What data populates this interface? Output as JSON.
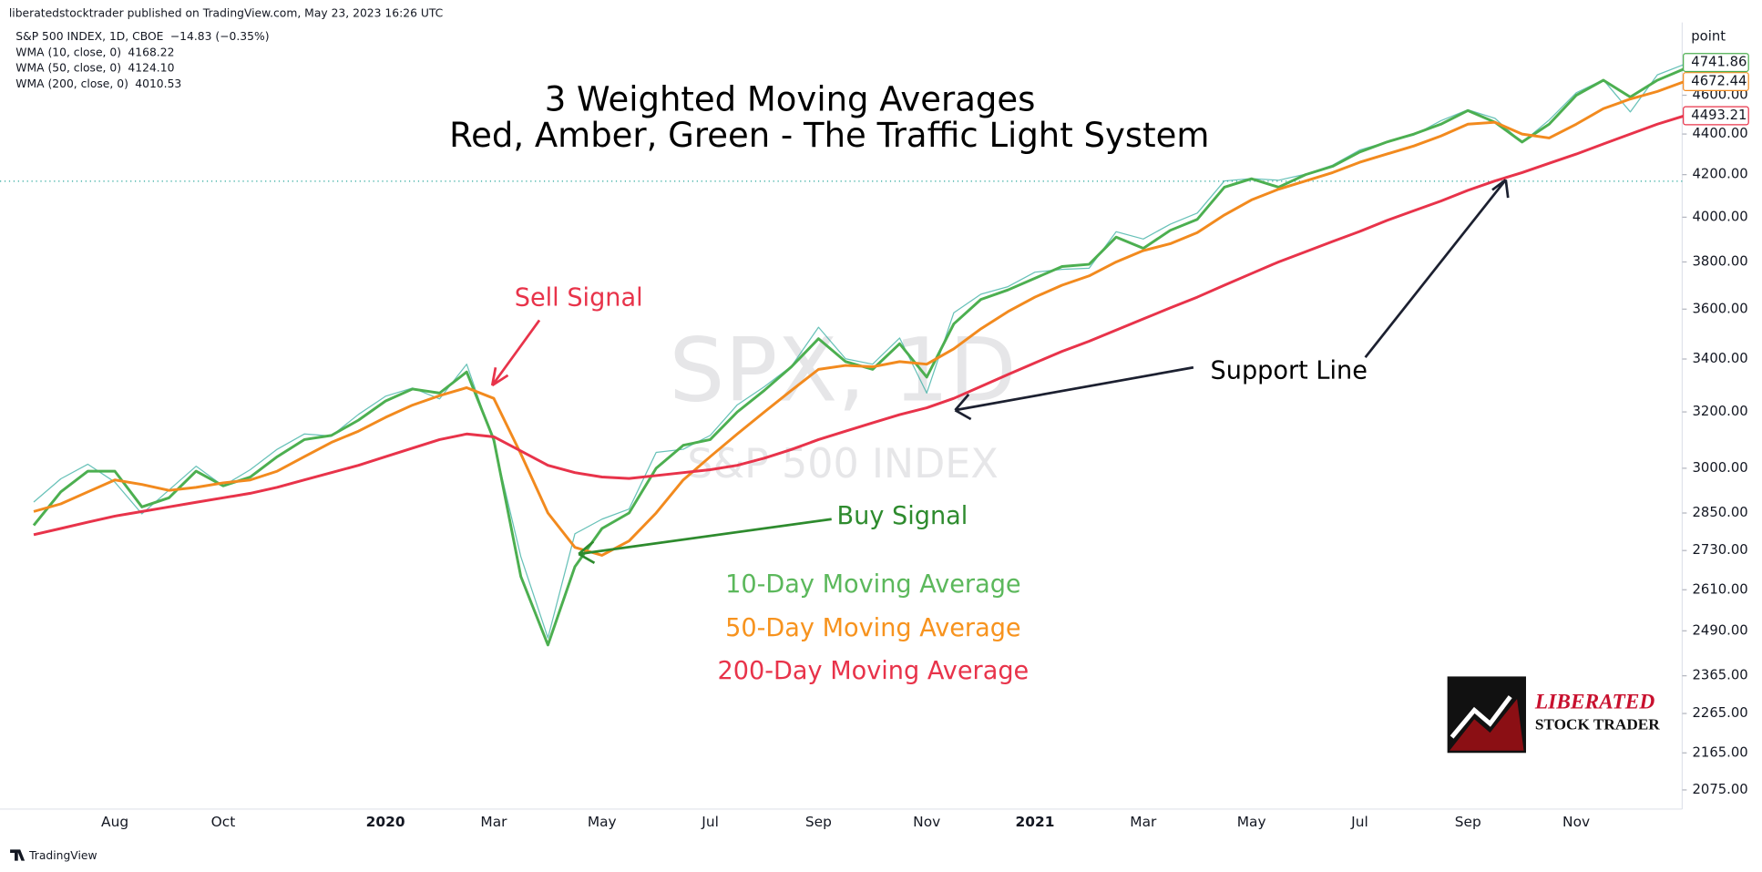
{
  "header": "liberatedstocktrader published on TradingView.com, May 23, 2023 16:26 UTC",
  "footer": "TradingView",
  "chart_data": {
    "type": "line",
    "title": [
      "3 Weighted Moving Averages",
      "Red, Amber, Green - The Traffic Light System"
    ],
    "watermark": [
      "SPX, 1D",
      "S&P 500 INDEX"
    ],
    "y_unit": "point",
    "log_scale": true,
    "grid": false,
    "categories": [
      null,
      null,
      null,
      "Aug",
      null,
      null,
      null,
      "Oct",
      null,
      null,
      null,
      null,
      null,
      "2020",
      null,
      null,
      null,
      "Mar",
      null,
      null,
      null,
      "May",
      null,
      null,
      null,
      "Jul",
      null,
      null,
      null,
      "Sep",
      null,
      null,
      null,
      "Nov",
      null,
      null,
      null,
      "2021",
      null,
      null,
      null,
      "Mar",
      null,
      null,
      null,
      "May",
      null,
      null,
      null,
      "Jul",
      null,
      null,
      null,
      "Sep",
      null,
      null,
      null,
      "Nov",
      null,
      null,
      null,
      null
    ],
    "ylim": [
      2030,
      5000
    ],
    "yticks": [
      {
        "value": 2075,
        "label": "2075.00"
      },
      {
        "value": 2165,
        "label": "2165.00"
      },
      {
        "value": 2265,
        "label": "2265.00"
      },
      {
        "value": 2365,
        "label": "2365.00"
      },
      {
        "value": 2490,
        "label": "2490.00"
      },
      {
        "value": 2610,
        "label": "2610.00"
      },
      {
        "value": 2730,
        "label": "2730.00"
      },
      {
        "value": 2850,
        "label": "2850.00"
      },
      {
        "value": 3000,
        "label": "3000.00"
      },
      {
        "value": 3200,
        "label": "3200.00"
      },
      {
        "value": 3400,
        "label": "3400.00"
      },
      {
        "value": 3600,
        "label": "3600.00"
      },
      {
        "value": 3800,
        "label": "3800.00"
      },
      {
        "value": 4000,
        "label": "4000.00"
      },
      {
        "value": 4200,
        "label": "4200.00"
      },
      {
        "value": 4400,
        "label": "4400.00"
      },
      {
        "value": 4600,
        "label": "4600.00"
      }
    ],
    "series": [
      {
        "name": "S&P 500 INDEX, 1D, CBOE",
        "color": "#26a69a",
        "legend_value": "−14.83 (−0.35%)",
        "values": [
          2886,
          2964,
          3014,
          2953,
          2847,
          2926,
          3007,
          2940,
          2995,
          3066,
          3120,
          3113,
          3191,
          3258,
          3289,
          3248,
          3380,
          3090,
          2711,
          2470,
          2783,
          2830,
          2863,
          3055,
          3066,
          3115,
          3226,
          3294,
          3372,
          3526,
          3401,
          3380,
          3483,
          3270,
          3585,
          3662,
          3694,
          3756,
          3768,
          3773,
          3934,
          3901,
          3968,
          4019,
          4170,
          4181,
          4173,
          4202,
          4246,
          4320,
          4360,
          4395,
          4468,
          4524,
          4480,
          4357,
          4471,
          4613,
          4682,
          4513,
          4709,
          4766
        ]
      },
      {
        "name": "WMA (10, close, 0)",
        "color": "#4caf50",
        "axis_label": true,
        "legend_value": {
          "value": 4168.22,
          "label": "4168.22"
        },
        "values": [
          2810,
          2920,
          2990,
          2990,
          2870,
          2900,
          2990,
          2940,
          2970,
          3040,
          3100,
          3115,
          3170,
          3240,
          3285,
          3270,
          3350,
          3100,
          2650,
          2450,
          2680,
          2800,
          2850,
          3000,
          3080,
          3100,
          3200,
          3280,
          3370,
          3480,
          3390,
          3360,
          3460,
          3330,
          3540,
          3640,
          3680,
          3730,
          3780,
          3790,
          3910,
          3860,
          3940,
          3990,
          4140,
          4180,
          4140,
          4200,
          4240,
          4310,
          4360,
          4400,
          4450,
          4520,
          4460,
          4360,
          4450,
          4600,
          4680,
          4590,
          4680,
          4741.86
        ]
      },
      {
        "name": "WMA (50, close, 0)",
        "color": "#f28a1e",
        "axis_label": true,
        "legend_value": {
          "value": 4124.1,
          "label": "4124.10"
        },
        "values": [
          2855,
          2880,
          2920,
          2960,
          2945,
          2925,
          2935,
          2950,
          2960,
          2990,
          3040,
          3090,
          3130,
          3180,
          3225,
          3260,
          3290,
          3250,
          3050,
          2850,
          2740,
          2715,
          2760,
          2850,
          2960,
          3040,
          3120,
          3200,
          3280,
          3360,
          3375,
          3370,
          3390,
          3380,
          3440,
          3520,
          3590,
          3650,
          3700,
          3740,
          3800,
          3850,
          3880,
          3930,
          4010,
          4080,
          4130,
          4170,
          4210,
          4260,
          4300,
          4340,
          4390,
          4450,
          4460,
          4400,
          4380,
          4450,
          4530,
          4580,
          4620,
          4672.44
        ]
      },
      {
        "name": "WMA (200, close, 0)",
        "color": "#e8334a",
        "axis_label": true,
        "legend_value": {
          "value": 4010.53,
          "label": "4010.53"
        },
        "values": [
          2780,
          2800,
          2820,
          2840,
          2855,
          2870,
          2885,
          2900,
          2915,
          2935,
          2960,
          2985,
          3010,
          3040,
          3070,
          3100,
          3120,
          3110,
          3060,
          3010,
          2985,
          2970,
          2965,
          2975,
          2985,
          2995,
          3010,
          3035,
          3065,
          3100,
          3130,
          3160,
          3190,
          3215,
          3250,
          3295,
          3340,
          3385,
          3430,
          3470,
          3515,
          3560,
          3605,
          3650,
          3700,
          3750,
          3800,
          3845,
          3890,
          3935,
          3985,
          4030,
          4075,
          4125,
          4170,
          4210,
          4255,
          4300,
          4350,
          4400,
          4450,
          4493.21
        ]
      }
    ],
    "annotations": [
      "Sell Signal",
      "Buy Signal",
      "Support Line",
      "10-Day Moving Average",
      "50-Day Moving Average",
      "200-Day Moving Average"
    ],
    "logo": [
      "LIBERATED",
      "STOCK TRADER"
    ]
  }
}
